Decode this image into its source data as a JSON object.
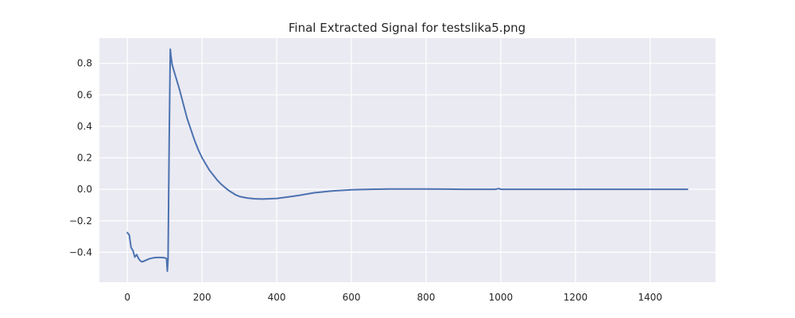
{
  "chart_data": {
    "type": "line",
    "title": "Final Extracted Signal for testslika5.png",
    "xlabel": "",
    "ylabel": "",
    "xlim": [
      -75,
      1575
    ],
    "ylim": [
      -0.59,
      0.96
    ],
    "grid": true,
    "x_ticks": [
      0,
      200,
      400,
      600,
      800,
      1000,
      1200,
      1400
    ],
    "y_ticks": [
      -0.4,
      -0.2,
      0.0,
      0.2,
      0.4,
      0.6,
      0.8
    ],
    "x_tick_labels": [
      "0",
      "200",
      "400",
      "600",
      "800",
      "1000",
      "1200",
      "1400"
    ],
    "y_tick_labels": [
      "−0.4",
      "−0.2",
      "0.0",
      "0.2",
      "0.4",
      "0.6",
      "0.8"
    ],
    "series": [
      {
        "color": "#4c72b0",
        "x": [
          0,
          5,
          10,
          15,
          20,
          25,
          30,
          35,
          40,
          50,
          60,
          70,
          80,
          90,
          100,
          105,
          107,
          109,
          112,
          115,
          117,
          120,
          130,
          140,
          150,
          160,
          170,
          180,
          190,
          200,
          210,
          220,
          230,
          240,
          250,
          260,
          270,
          280,
          290,
          300,
          320,
          340,
          360,
          380,
          400,
          420,
          440,
          460,
          480,
          500,
          550,
          600,
          650,
          700,
          750,
          800,
          850,
          900,
          950,
          985,
          995,
          1000,
          1050,
          1100,
          1200,
          1300,
          1400,
          1500
        ],
        "y": [
          -0.275,
          -0.29,
          -0.37,
          -0.39,
          -0.43,
          -0.415,
          -0.44,
          -0.455,
          -0.46,
          -0.45,
          -0.44,
          -0.435,
          -0.433,
          -0.433,
          -0.435,
          -0.44,
          -0.52,
          -0.44,
          0.3,
          0.89,
          0.84,
          0.79,
          0.71,
          0.63,
          0.54,
          0.45,
          0.38,
          0.31,
          0.25,
          0.2,
          0.16,
          0.12,
          0.09,
          0.06,
          0.035,
          0.015,
          -0.005,
          -0.02,
          -0.035,
          -0.045,
          -0.055,
          -0.06,
          -0.062,
          -0.06,
          -0.058,
          -0.052,
          -0.045,
          -0.038,
          -0.03,
          -0.022,
          -0.01,
          -0.003,
          0.0,
          0.002,
          0.002,
          0.002,
          0.001,
          0.0,
          0.0,
          0.0,
          0.005,
          0.0,
          0.0,
          0.0,
          0.0,
          0.0,
          0.0,
          0.0
        ]
      }
    ]
  }
}
